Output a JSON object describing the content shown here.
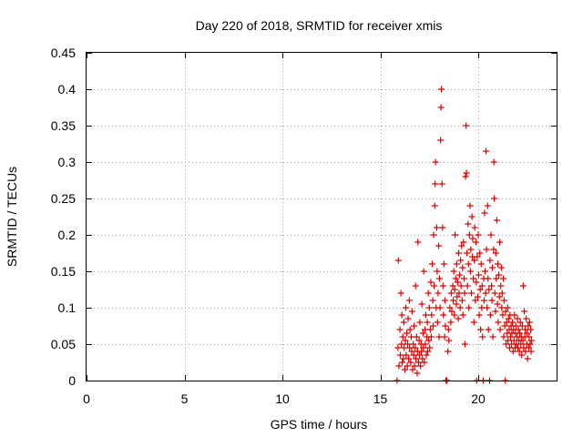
{
  "chart_data": {
    "type": "scatter",
    "title": "Day 220 of 2018, SRMTID for receiver xmis",
    "xlabel": "GPS time / hours",
    "ylabel": "SRMTID / TECUs",
    "xlim": [
      0,
      24
    ],
    "ylim": [
      0,
      0.45
    ],
    "x_ticks": [
      0,
      5,
      10,
      15,
      20
    ],
    "x_tick_labels": [
      "0",
      "5",
      "10",
      "15",
      "20"
    ],
    "y_ticks": [
      0,
      0.05,
      0.1,
      0.15,
      0.2,
      0.25,
      0.3,
      0.35,
      0.4,
      0.45
    ],
    "y_tick_labels": [
      "0",
      "0.05",
      "0.1",
      "0.15",
      "0.2",
      "0.25",
      "0.3",
      "0.35",
      "0.4",
      "0.45"
    ],
    "grid": true,
    "marker": "+",
    "color": "#e00000",
    "series": [
      {
        "name": "SRMTID",
        "points": [
          [
            15.85,
            0.0
          ],
          [
            15.9,
            0.045
          ],
          [
            15.92,
            0.165
          ],
          [
            15.95,
            0.02
          ],
          [
            16.0,
            0.07
          ],
          [
            16.02,
            0.035
          ],
          [
            16.05,
            0.12
          ],
          [
            16.08,
            0.05
          ],
          [
            16.1,
            0.09
          ],
          [
            16.12,
            0.025
          ],
          [
            16.15,
            0.06
          ],
          [
            16.18,
            0.03
          ],
          [
            16.2,
            0.08
          ],
          [
            16.22,
            0.045
          ],
          [
            16.25,
            0.015
          ],
          [
            16.28,
            0.055
          ],
          [
            16.3,
            0.1
          ],
          [
            16.32,
            0.035
          ],
          [
            16.35,
            0.065
          ],
          [
            16.38,
            0.02
          ],
          [
            16.4,
            0.05
          ],
          [
            16.42,
            0.085
          ],
          [
            16.45,
            0.03
          ],
          [
            16.48,
            0.11
          ],
          [
            16.5,
            0.045
          ],
          [
            16.52,
            0.07
          ],
          [
            16.55,
            0.025
          ],
          [
            16.58,
            0.06
          ],
          [
            16.6,
            0.04
          ],
          [
            16.62,
            0.095
          ],
          [
            16.65,
            0.015
          ],
          [
            16.68,
            0.05
          ],
          [
            16.7,
            0.035
          ],
          [
            16.72,
            0.075
          ],
          [
            16.75,
            0.02
          ],
          [
            16.78,
            0.045
          ],
          [
            16.8,
            0.13
          ],
          [
            16.82,
            0.03
          ],
          [
            16.85,
            0.06
          ],
          [
            16.88,
            0.01
          ],
          [
            16.9,
            0.04
          ],
          [
            16.92,
            0.19
          ],
          [
            16.95,
            0.025
          ],
          [
            16.98,
            0.055
          ],
          [
            17.0,
            0.035
          ],
          [
            17.02,
            0.08
          ],
          [
            17.05,
            0.02
          ],
          [
            17.08,
            0.05
          ],
          [
            17.1,
            0.04
          ],
          [
            17.12,
            0.105
          ],
          [
            17.15,
            0.03
          ],
          [
            17.18,
            0.065
          ],
          [
            17.2,
            0.045
          ],
          [
            17.22,
            0.15
          ],
          [
            17.25,
            0.025
          ],
          [
            17.28,
            0.07
          ],
          [
            17.3,
            0.05
          ],
          [
            17.32,
            0.09
          ],
          [
            17.35,
            0.035
          ],
          [
            17.38,
            0.06
          ],
          [
            17.4,
            0.08
          ],
          [
            17.42,
            0.04
          ],
          [
            17.45,
            0.12
          ],
          [
            17.48,
            0.055
          ],
          [
            17.5,
            0.1
          ],
          [
            17.52,
            0.045
          ],
          [
            17.55,
            0.07
          ],
          [
            17.58,
            0.135
          ],
          [
            17.6,
            0.06
          ],
          [
            17.62,
            0.09
          ],
          [
            17.65,
            0.16
          ],
          [
            17.68,
            0.11
          ],
          [
            17.7,
            0.075
          ],
          [
            17.72,
            0.2
          ],
          [
            17.75,
            0.13
          ],
          [
            17.78,
            0.24
          ],
          [
            17.8,
            0.27
          ],
          [
            17.82,
            0.3
          ],
          [
            17.85,
            0.1
          ],
          [
            17.88,
            0.21
          ],
          [
            17.9,
            0.15
          ],
          [
            17.92,
            0.08
          ],
          [
            17.95,
            0.12
          ],
          [
            17.98,
            0.185
          ],
          [
            18.0,
            0.06
          ],
          [
            18.02,
            0.14
          ],
          [
            18.05,
            0.1
          ],
          [
            18.08,
            0.33
          ],
          [
            18.1,
            0.375
          ],
          [
            18.12,
            0.4
          ],
          [
            18.15,
            0.27
          ],
          [
            18.18,
            0.21
          ],
          [
            18.2,
            0.13
          ],
          [
            18.22,
            0.09
          ],
          [
            18.25,
            0.16
          ],
          [
            18.28,
            0.06
          ],
          [
            18.3,
            0.11
          ],
          [
            18.32,
            0.075
          ],
          [
            18.35,
            0.0
          ],
          [
            18.38,
            0.0
          ],
          [
            18.4,
            0.0
          ],
          [
            18.45,
            0.04
          ],
          [
            18.48,
            0.07
          ],
          [
            18.5,
            0.055
          ],
          [
            18.55,
            0.1
          ],
          [
            18.6,
            0.08
          ],
          [
            18.62,
            0.12
          ],
          [
            18.65,
            0.095
          ],
          [
            18.7,
            0.13
          ],
          [
            18.72,
            0.11
          ],
          [
            18.75,
            0.15
          ],
          [
            18.78,
            0.09
          ],
          [
            18.8,
            0.125
          ],
          [
            18.82,
            0.2
          ],
          [
            18.85,
            0.14
          ],
          [
            18.88,
            0.105
          ],
          [
            18.9,
            0.16
          ],
          [
            18.92,
            0.115
          ],
          [
            18.95,
            0.135
          ],
          [
            18.98,
            0.085
          ],
          [
            19.0,
            0.175
          ],
          [
            19.02,
            0.12
          ],
          [
            19.05,
            0.145
          ],
          [
            19.08,
            0.1
          ],
          [
            19.1,
            0.165
          ],
          [
            19.12,
            0.13
          ],
          [
            19.15,
            0.185
          ],
          [
            19.18,
            0.11
          ],
          [
            19.2,
            0.155
          ],
          [
            19.22,
            0.09
          ],
          [
            19.25,
            0.19
          ],
          [
            19.28,
            0.14
          ],
          [
            19.3,
            0.12
          ],
          [
            19.32,
            0.05
          ],
          [
            19.35,
            0.28
          ],
          [
            19.38,
            0.35
          ],
          [
            19.4,
            0.285
          ],
          [
            19.42,
            0.175
          ],
          [
            19.45,
            0.13
          ],
          [
            19.48,
            0.215
          ],
          [
            19.5,
            0.16
          ],
          [
            19.52,
            0.1
          ],
          [
            19.55,
            0.2
          ],
          [
            19.58,
            0.24
          ],
          [
            19.6,
            0.15
          ],
          [
            19.62,
            0.18
          ],
          [
            19.65,
            0.12
          ],
          [
            19.68,
            0.225
          ],
          [
            19.7,
            0.17
          ],
          [
            19.72,
            0.195
          ],
          [
            19.75,
            0.14
          ],
          [
            19.78,
            0.08
          ],
          [
            19.8,
            0.165
          ],
          [
            19.82,
            0.21
          ],
          [
            19.85,
            0.11
          ],
          [
            19.88,
            0.19
          ],
          [
            19.9,
            0.135
          ],
          [
            19.92,
            0.0
          ],
          [
            19.95,
            0.17
          ],
          [
            19.98,
            0.115
          ],
          [
            20.0,
            0.2
          ],
          [
            20.02,
            0.145
          ],
          [
            20.05,
            0.09
          ],
          [
            20.08,
            0.175
          ],
          [
            20.1,
            0.125
          ],
          [
            20.12,
            0.07
          ],
          [
            20.15,
            0.16
          ],
          [
            20.18,
            0.1
          ],
          [
            20.2,
            0.13
          ],
          [
            20.22,
            0.06
          ],
          [
            20.25,
            0.0
          ],
          [
            20.28,
            0.14
          ],
          [
            20.3,
            0.11
          ],
          [
            20.32,
            0.23
          ],
          [
            20.35,
            0.15
          ],
          [
            20.38,
            0.12
          ],
          [
            20.4,
            0.315
          ],
          [
            20.42,
            0.18
          ],
          [
            20.45,
            0.1
          ],
          [
            20.48,
            0.24
          ],
          [
            20.5,
            0.14
          ],
          [
            20.52,
            0.07
          ],
          [
            20.55,
            0.125
          ],
          [
            20.58,
            0.0
          ],
          [
            20.6,
            0.165
          ],
          [
            20.62,
            0.09
          ],
          [
            20.65,
            0.2
          ],
          [
            20.68,
            0.13
          ],
          [
            20.7,
            0.11
          ],
          [
            20.72,
            0.155
          ],
          [
            20.75,
            0.06
          ],
          [
            20.78,
            0.18
          ],
          [
            20.8,
            0.3
          ],
          [
            20.82,
            0.25
          ],
          [
            20.85,
            0.12
          ],
          [
            20.88,
            0.095
          ],
          [
            20.9,
            0.175
          ],
          [
            20.92,
            0.14
          ],
          [
            20.95,
            0.22
          ],
          [
            20.98,
            0.105
          ],
          [
            21.0,
            0.16
          ],
          [
            21.02,
            0.08
          ],
          [
            21.05,
            0.145
          ],
          [
            21.08,
            0.115
          ],
          [
            21.1,
            0.19
          ],
          [
            21.12,
            0.07
          ],
          [
            21.15,
            0.13
          ],
          [
            21.18,
            0.155
          ],
          [
            21.2,
            0.1
          ],
          [
            21.22,
            0.12
          ],
          [
            21.25,
            0.09
          ],
          [
            21.28,
            0.14
          ],
          [
            21.3,
            0.06
          ],
          [
            21.32,
            0.11
          ],
          [
            21.35,
            0.075
          ],
          [
            21.38,
            0.0
          ],
          [
            21.4,
            0.095
          ],
          [
            21.42,
            0.05
          ],
          [
            21.45,
            0.08
          ],
          [
            21.48,
            0.065
          ],
          [
            21.5,
            0.1
          ],
          [
            21.52,
            0.055
          ],
          [
            21.55,
            0.085
          ],
          [
            21.58,
            0.07
          ],
          [
            21.6,
            0.045
          ],
          [
            21.62,
            0.09
          ],
          [
            21.65,
            0.06
          ],
          [
            21.68,
            0.075
          ],
          [
            21.7,
            0.05
          ],
          [
            21.72,
            0.065
          ],
          [
            21.75,
            0.08
          ],
          [
            21.78,
            0.04
          ],
          [
            21.8,
            0.07
          ],
          [
            21.82,
            0.055
          ],
          [
            21.85,
            0.09
          ],
          [
            21.88,
            0.045
          ],
          [
            21.9,
            0.065
          ],
          [
            21.92,
            0.075
          ],
          [
            21.95,
            0.05
          ],
          [
            21.98,
            0.06
          ],
          [
            22.0,
            0.085
          ],
          [
            22.02,
            0.045
          ],
          [
            22.05,
            0.07
          ],
          [
            22.08,
            0.055
          ],
          [
            22.1,
            0.04
          ],
          [
            22.12,
            0.065
          ],
          [
            22.15,
            0.08
          ],
          [
            22.18,
            0.05
          ],
          [
            22.2,
            0.06
          ],
          [
            22.22,
            0.035
          ],
          [
            22.25,
            0.075
          ],
          [
            22.28,
            0.055
          ],
          [
            22.3,
            0.13
          ],
          [
            22.32,
            0.045
          ],
          [
            22.35,
            0.095
          ],
          [
            22.38,
            0.06
          ],
          [
            22.4,
            0.07
          ],
          [
            22.42,
            0.04
          ],
          [
            22.45,
            0.085
          ],
          [
            22.48,
            0.05
          ],
          [
            22.5,
            0.065
          ],
          [
            22.52,
            0.03
          ],
          [
            22.55,
            0.075
          ],
          [
            22.58,
            0.045
          ],
          [
            22.6,
            0.06
          ],
          [
            22.62,
            0.08
          ],
          [
            22.65,
            0.05
          ],
          [
            22.68,
            0.07
          ],
          [
            22.7,
            0.04
          ],
          [
            22.72,
            0.055
          ]
        ]
      }
    ]
  }
}
